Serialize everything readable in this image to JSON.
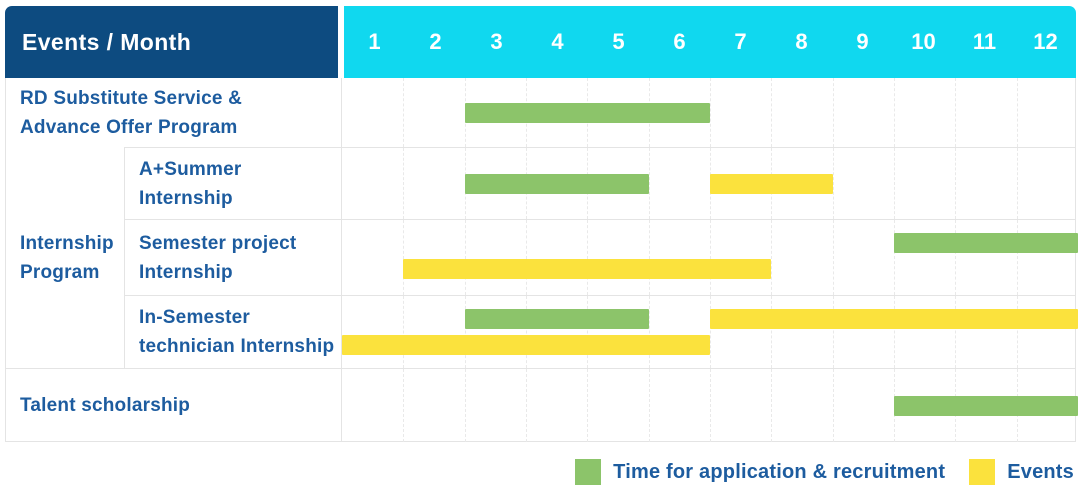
{
  "header": {
    "label_col": "Events / Month",
    "months": [
      "1",
      "2",
      "3",
      "4",
      "5",
      "6",
      "7",
      "8",
      "9",
      "10",
      "11",
      "12"
    ]
  },
  "internship_group": {
    "label": "Internship Program",
    "label_lines": [
      "Internship",
      "Program"
    ]
  },
  "rows": [
    {
      "group": null,
      "label": "RD Substitute Service & Advance Offer Program",
      "label_lines": [
        "RD Substitute Service &",
        "Advance Offer Program"
      ],
      "bars": [
        {
          "kind": "recruitment",
          "start": 3,
          "end": 6,
          "line": 0
        }
      ]
    },
    {
      "group": "Internship Program",
      "label": "A+Summer Internship",
      "label_lines": [
        "A+Summer",
        "Internship"
      ],
      "bars": [
        {
          "kind": "recruitment",
          "start": 3,
          "end": 5,
          "line": 0
        },
        {
          "kind": "event",
          "start": 7,
          "end": 8,
          "line": 0
        }
      ]
    },
    {
      "group": "Internship Program",
      "label": "Semester project Internship",
      "label_lines": [
        "Semester project",
        "Internship"
      ],
      "bars": [
        {
          "kind": "recruitment",
          "start": 10,
          "end": 12,
          "line": 0
        },
        {
          "kind": "event",
          "start": 2,
          "end": 7,
          "line": 1
        }
      ]
    },
    {
      "group": "Internship Program",
      "label": "In-Semester technician Internship",
      "label_lines": [
        "In-Semester",
        "technician Internship"
      ],
      "bars": [
        {
          "kind": "recruitment",
          "start": 3,
          "end": 5,
          "line": 0
        },
        {
          "kind": "event",
          "start": 7,
          "end": 12,
          "line": 0
        },
        {
          "kind": "event",
          "start": 1,
          "end": 6,
          "line": 1
        }
      ]
    },
    {
      "group": null,
      "label": "Talent scholarship",
      "label_lines": [
        "Talent scholarship"
      ],
      "bars": [
        {
          "kind": "recruitment",
          "start": 10,
          "end": 12,
          "line": 0
        }
      ]
    }
  ],
  "legend": {
    "items": [
      {
        "label": "Time for application & recruitment",
        "color_key": "green"
      },
      {
        "label": "Events",
        "color_key": "yellow"
      }
    ]
  },
  "colors": {
    "header_bg": "#0d4b80",
    "months_bg": "#10d8ef",
    "green": "#8cc46a",
    "yellow": "#fbe23d",
    "label_text": "#1d5c9f",
    "grid_line": "#e4e4e4",
    "grid_dashed": "#e9e9e9",
    "header_text": "#ffffff"
  },
  "chart_data": {
    "type": "bar",
    "subtype": "gantt-schedule",
    "title": "Events / Month",
    "xlabel": "Month",
    "x_ticks": [
      1,
      2,
      3,
      4,
      5,
      6,
      7,
      8,
      9,
      10,
      11,
      12
    ],
    "x_range": [
      1,
      12
    ],
    "grid": "dashed vertical month separators, solid row separators",
    "legend_position": "bottom-right",
    "series_types": {
      "recruitment": "Time for application & recruitment (green)",
      "event": "Events (yellow)"
    },
    "rows": [
      {
        "event": "RD Substitute Service & Advance Offer Program",
        "spans": [
          {
            "type": "Time for application & recruitment",
            "start_month": 3,
            "end_month": 6
          }
        ]
      },
      {
        "group": "Internship Program",
        "event": "A+Summer Internship",
        "spans": [
          {
            "type": "Time for application & recruitment",
            "start_month": 3,
            "end_month": 5
          },
          {
            "type": "Events",
            "start_month": 7,
            "end_month": 8
          }
        ]
      },
      {
        "group": "Internship Program",
        "event": "Semester project Internship",
        "spans": [
          {
            "type": "Time for application & recruitment",
            "start_month": 10,
            "end_month": 12
          },
          {
            "type": "Events",
            "start_month": 2,
            "end_month": 7
          }
        ]
      },
      {
        "group": "Internship Program",
        "event": "In-Semester technician Internship",
        "spans": [
          {
            "type": "Time for application & recruitment",
            "start_month": 3,
            "end_month": 5
          },
          {
            "type": "Events",
            "start_month": 1,
            "end_month": 6
          },
          {
            "type": "Events",
            "start_month": 7,
            "end_month": 12
          }
        ]
      },
      {
        "event": "Talent scholarship",
        "spans": [
          {
            "type": "Time for application & recruitment",
            "start_month": 10,
            "end_month": 12
          }
        ]
      }
    ]
  }
}
